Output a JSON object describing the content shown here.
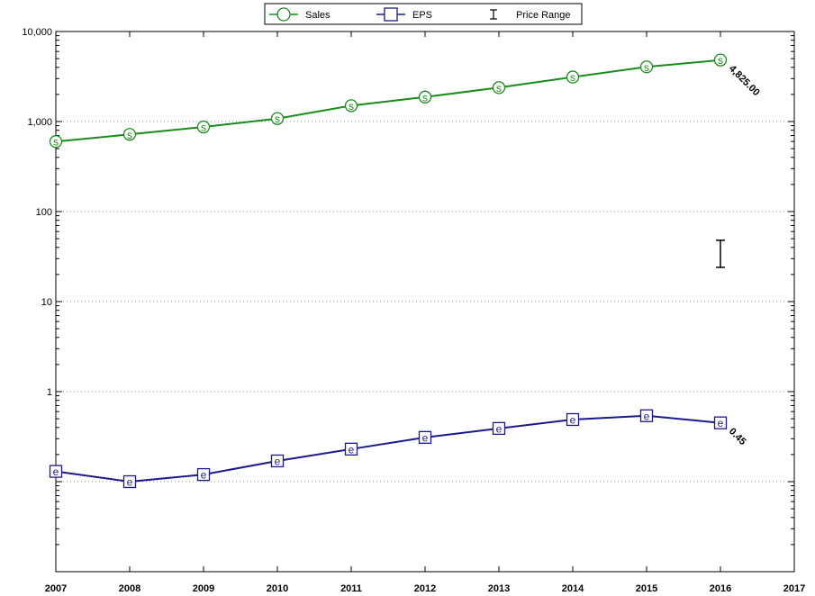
{
  "chart_data": {
    "type": "line",
    "title": "",
    "xlabel": "",
    "ylabel": "",
    "y_scale": "log",
    "ylim": [
      0.01,
      10000
    ],
    "xlim": [
      2007,
      2017
    ],
    "grid": true,
    "legend_position": "top-center",
    "x": [
      2007,
      2008,
      2009,
      2010,
      2011,
      2012,
      2013,
      2014,
      2015,
      2016
    ],
    "x_tick_labels": [
      "2007",
      "2008",
      "2009",
      "2010",
      "2011",
      "2012",
      "2013",
      "2014",
      "2015",
      "2016",
      "2017"
    ],
    "y_tick_labels": [
      {
        "value": 10000,
        "label": "10,000"
      },
      {
        "value": 1000,
        "label": "1,000"
      },
      {
        "value": 100,
        "label": "100"
      },
      {
        "value": 10,
        "label": "10"
      },
      {
        "value": 1,
        "label": "1"
      }
    ],
    "series": [
      {
        "name": "Sales",
        "marker": "circle",
        "marker_letter": "s",
        "color": "#1a8c1a",
        "values": [
          600,
          720,
          870,
          1080,
          1500,
          1870,
          2380,
          3120,
          4050,
          4825
        ],
        "end_label": "4,825.00"
      },
      {
        "name": "EPS",
        "marker": "square",
        "marker_letter": "e",
        "color": "#1a1a8c",
        "values": [
          0.13,
          0.1,
          0.12,
          0.17,
          0.23,
          0.31,
          0.39,
          0.49,
          0.54,
          0.45
        ],
        "end_label": "0.45"
      }
    ],
    "price_range": {
      "name": "Price Range",
      "x": 2016,
      "low": 24,
      "high": 48
    }
  },
  "colors": {
    "sales": "#1a8c1a",
    "eps": "#1a1a8c",
    "grid": "#888888"
  }
}
